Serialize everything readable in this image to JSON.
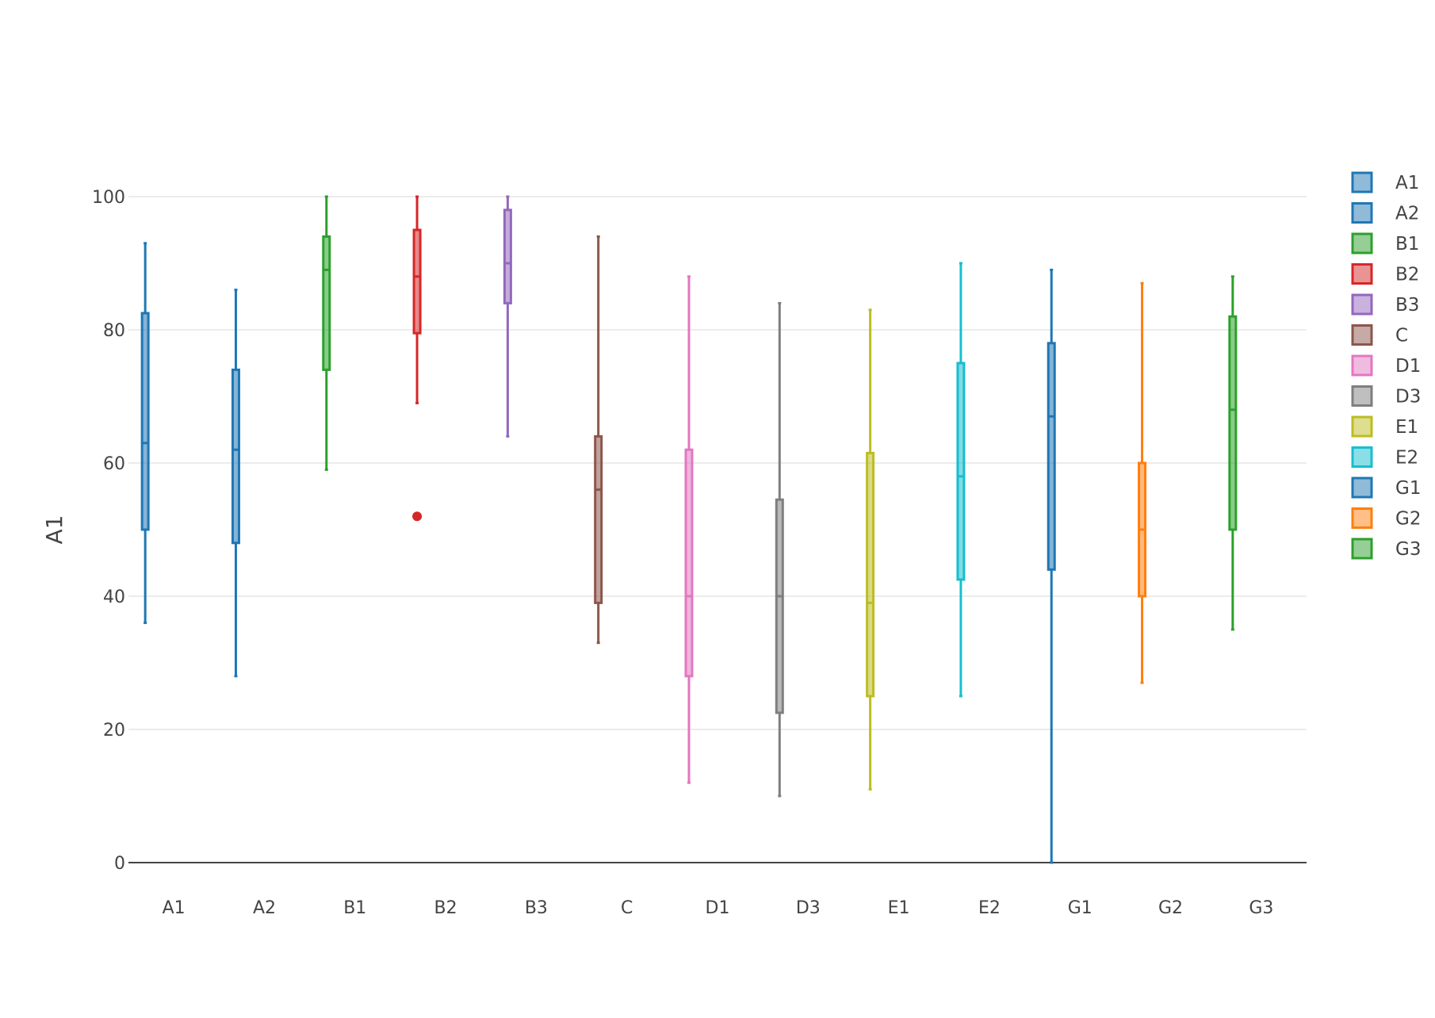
{
  "chart_data": {
    "type": "box",
    "ylabel": "A1",
    "ylim": [
      0,
      100
    ],
    "y_ticks": [
      0,
      20,
      40,
      60,
      80,
      100
    ],
    "grid": true,
    "legend_placement": "right",
    "categories": [
      "A1",
      "A2",
      "B1",
      "B2",
      "B3",
      "C",
      "D1",
      "D3",
      "E1",
      "E2",
      "G1",
      "G2",
      "G3"
    ],
    "series": [
      {
        "name": "A1",
        "color": "#1f77b4",
        "min": 36,
        "q1": 50,
        "median": 63,
        "q3": 82.5,
        "max": 93,
        "outliers": []
      },
      {
        "name": "A2",
        "color": "#1f77b4",
        "min": 28,
        "q1": 48,
        "median": 62,
        "q3": 74,
        "max": 86,
        "outliers": []
      },
      {
        "name": "B1",
        "color": "#2ca02c",
        "min": 59,
        "q1": 74,
        "median": 89,
        "q3": 94,
        "max": 100,
        "outliers": []
      },
      {
        "name": "B2",
        "color": "#d62728",
        "min": 69,
        "q1": 79.5,
        "median": 88,
        "q3": 95,
        "max": 100,
        "outliers": [
          52
        ]
      },
      {
        "name": "B3",
        "color": "#9467bd",
        "min": 64,
        "q1": 84,
        "median": 90,
        "q3": 98,
        "max": 100,
        "outliers": []
      },
      {
        "name": "C",
        "color": "#8c564b",
        "min": 33,
        "q1": 39,
        "median": 56,
        "q3": 64,
        "max": 94,
        "outliers": []
      },
      {
        "name": "D1",
        "color": "#e377c2",
        "min": 12,
        "q1": 28,
        "median": 40,
        "q3": 62,
        "max": 88,
        "outliers": []
      },
      {
        "name": "D3",
        "color": "#7f7f7f",
        "min": 10,
        "q1": 22.5,
        "median": 40,
        "q3": 54.5,
        "max": 84,
        "outliers": []
      },
      {
        "name": "E1",
        "color": "#bcbd22",
        "min": 11,
        "q1": 25,
        "median": 39,
        "q3": 61.5,
        "max": 83,
        "outliers": []
      },
      {
        "name": "E2",
        "color": "#17becf",
        "min": 25,
        "q1": 42.5,
        "median": 58,
        "q3": 75,
        "max": 90,
        "outliers": []
      },
      {
        "name": "G1",
        "color": "#1f77b4",
        "min": 0,
        "q1": 44,
        "median": 67,
        "q3": 78,
        "max": 89,
        "outliers": []
      },
      {
        "name": "G2",
        "color": "#ff7f0e",
        "min": 27,
        "q1": 40,
        "median": 50,
        "q3": 60,
        "max": 87,
        "outliers": []
      },
      {
        "name": "G3",
        "color": "#2ca02c",
        "min": 35,
        "q1": 50,
        "median": 68,
        "q3": 82,
        "max": 88,
        "outliers": []
      }
    ]
  }
}
